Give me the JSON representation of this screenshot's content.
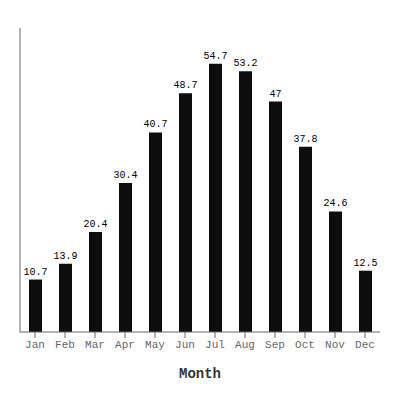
{
  "chart_data": {
    "type": "bar",
    "categories": [
      "Jan",
      "Feb",
      "Mar",
      "Apr",
      "May",
      "Jun",
      "Jul",
      "Aug",
      "Sep",
      "Oct",
      "Nov",
      "Dec"
    ],
    "values": [
      10.7,
      13.9,
      20.4,
      30.4,
      40.7,
      48.7,
      54.7,
      53.2,
      47.0,
      37.8,
      24.6,
      12.5
    ],
    "color": "#0d0d0d",
    "xlabel": "Month",
    "ylim": [
      0,
      62
    ],
    "grid": false,
    "data_labels": true,
    "tick_labels": "x"
  }
}
